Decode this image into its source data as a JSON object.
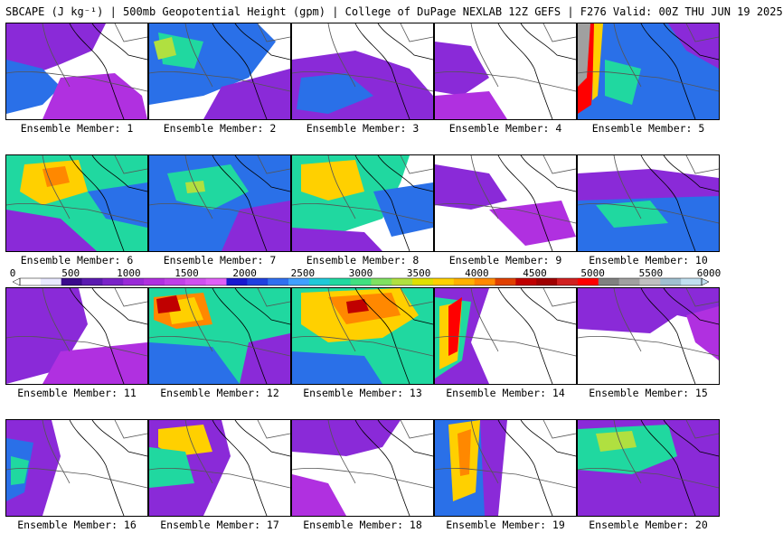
{
  "header": {
    "title": "SBCAPE (J kg⁻¹) | 500mb Geopotential Height (gpm) | College of DuPage NEXLAB 12Z GEFS | F276 Valid: 00Z THU JUN 19 2025"
  },
  "colorbar": {
    "labels": [
      "0",
      "500",
      "1000",
      "1500",
      "2000",
      "2500",
      "3000",
      "3500",
      "4000",
      "4500",
      "5000",
      "5500",
      "6000"
    ],
    "min": 0,
    "max": 6000,
    "step": 100,
    "colors": [
      "#ffffff",
      "#e8e8ff",
      "#3b0a8c",
      "#5a1ab0",
      "#7a22c8",
      "#9a2ad8",
      "#b030e0",
      "#c040e8",
      "#d050f0",
      "#e060f8",
      "#1818d0",
      "#2040e0",
      "#3070f0",
      "#40a0ff",
      "#20c8d8",
      "#20d8a0",
      "#40e080",
      "#80e060",
      "#b0e040",
      "#e0e000",
      "#ffd000",
      "#ffb000",
      "#ff8800",
      "#e04000",
      "#c00000",
      "#a00000",
      "#d02020",
      "#ff0000",
      "#808080",
      "#a0a0a0",
      "#c0c0c0",
      "#a0c0d0",
      "#c0e0f0"
    ]
  },
  "members": [
    {
      "label": "Ensemble Member: 1"
    },
    {
      "label": "Ensemble Member: 2"
    },
    {
      "label": "Ensemble Member: 3"
    },
    {
      "label": "Ensemble Member: 4"
    },
    {
      "label": "Ensemble Member: 5"
    },
    {
      "label": "Ensemble Member: 6"
    },
    {
      "label": "Ensemble Member: 7"
    },
    {
      "label": "Ensemble Member: 8"
    },
    {
      "label": "Ensemble Member: 9"
    },
    {
      "label": "Ensemble Member: 10"
    },
    {
      "label": "Ensemble Member: 11"
    },
    {
      "label": "Ensemble Member: 12"
    },
    {
      "label": "Ensemble Member: 13"
    },
    {
      "label": "Ensemble Member: 14"
    },
    {
      "label": "Ensemble Member: 15"
    },
    {
      "label": "Ensemble Member: 16"
    },
    {
      "label": "Ensemble Member: 17"
    },
    {
      "label": "Ensemble Member: 18"
    },
    {
      "label": "Ensemble Member: 19"
    },
    {
      "label": "Ensemble Member: 20"
    }
  ]
}
